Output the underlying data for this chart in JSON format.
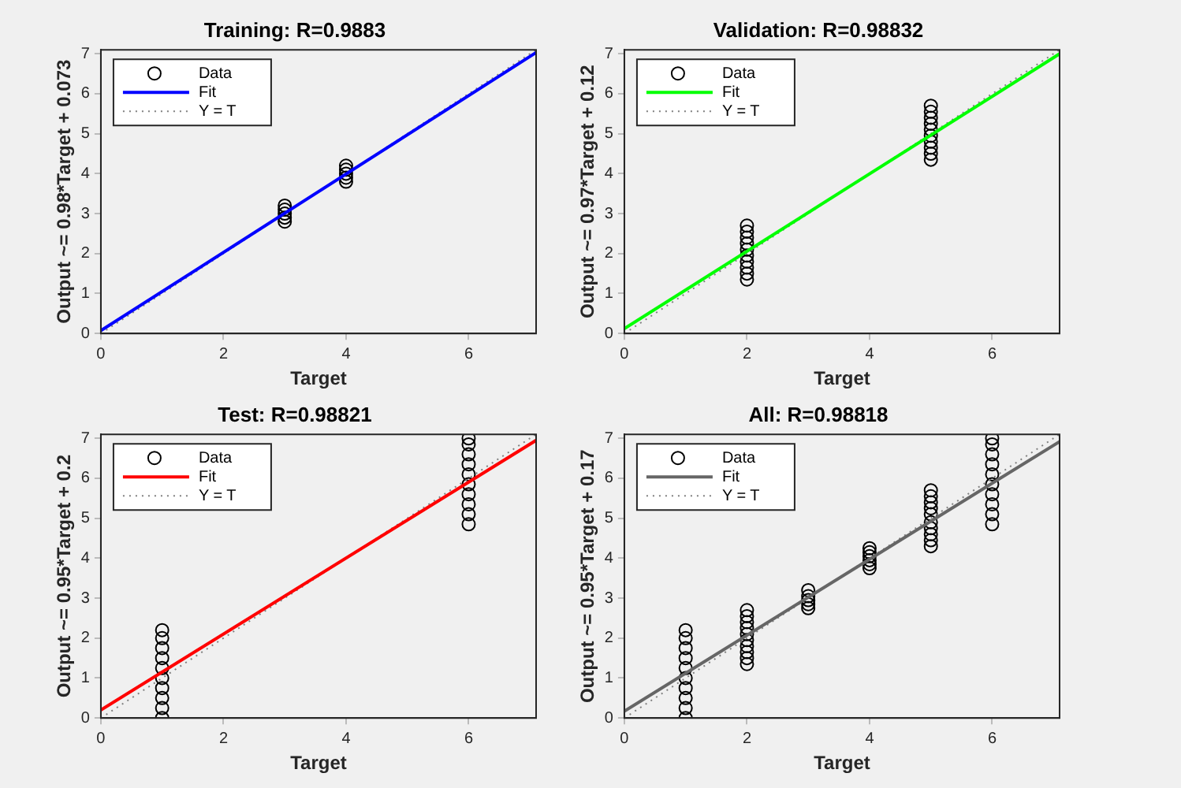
{
  "chart_data": [
    {
      "type": "scatter",
      "title": "Training: R=0.9883",
      "xlabel": "Target",
      "ylabel": "Output ~= 0.98*Target + 0.073",
      "xlim": [
        0,
        7.1
      ],
      "ylim": [
        0,
        7.1
      ],
      "xticks": [
        0,
        2,
        4,
        6
      ],
      "yticks": [
        0,
        1,
        2,
        3,
        4,
        5,
        6,
        7
      ],
      "grid": false,
      "legend": "top left",
      "series": [
        {
          "name": "Data",
          "type": "scatter",
          "color": "#000000",
          "marker": "circle",
          "x": [
            3,
            3,
            3,
            3,
            3,
            4,
            4,
            4,
            4,
            4
          ],
          "values": [
            2.8,
            2.9,
            3.0,
            3.1,
            3.2,
            3.8,
            3.9,
            4.0,
            4.1,
            4.2
          ]
        },
        {
          "name": "Fit",
          "type": "line",
          "color": "#0000ff",
          "line_style": "solid",
          "x": [
            0,
            7.1
          ],
          "values": [
            0.07,
            7.03
          ]
        },
        {
          "name": "Y = T",
          "type": "line",
          "color": "#808080",
          "line_style": "dotted",
          "x": [
            0,
            7.1
          ],
          "values": [
            0,
            7.1
          ]
        }
      ]
    },
    {
      "type": "scatter",
      "title": "Validation: R=0.98832",
      "xlabel": "Target",
      "ylabel": "Output ~= 0.97*Target + 0.12",
      "xlim": [
        0,
        7.1
      ],
      "ylim": [
        0,
        7.1
      ],
      "xticks": [
        0,
        2,
        4,
        6
      ],
      "yticks": [
        0,
        1,
        2,
        3,
        4,
        5,
        6,
        7
      ],
      "grid": false,
      "legend": "top left",
      "series": [
        {
          "name": "Data",
          "type": "scatter",
          "color": "#000000",
          "marker": "circle",
          "x": [
            2,
            2,
            2,
            2,
            2,
            2,
            2,
            2,
            2,
            2,
            5,
            5,
            5,
            5,
            5,
            5,
            5,
            5,
            5,
            5
          ],
          "values": [
            1.35,
            1.5,
            1.65,
            1.8,
            1.95,
            2.1,
            2.25,
            2.4,
            2.55,
            2.7,
            4.35,
            4.5,
            4.65,
            4.8,
            4.95,
            5.1,
            5.25,
            5.4,
            5.55,
            5.7
          ]
        },
        {
          "name": "Fit",
          "type": "line",
          "color": "#00ff00",
          "line_style": "solid",
          "x": [
            0,
            7.1
          ],
          "values": [
            0.12,
            7.0
          ]
        },
        {
          "name": "Y = T",
          "type": "line",
          "color": "#808080",
          "line_style": "dotted",
          "x": [
            0,
            7.1
          ],
          "values": [
            0,
            7.1
          ]
        }
      ]
    },
    {
      "type": "scatter",
      "title": "Test: R=0.98821",
      "xlabel": "Target",
      "ylabel": "Output ~= 0.95*Target + 0.2",
      "xlim": [
        0,
        7.1
      ],
      "ylim": [
        0,
        7.1
      ],
      "xticks": [
        0,
        2,
        4,
        6
      ],
      "yticks": [
        0,
        1,
        2,
        3,
        4,
        5,
        6,
        7
      ],
      "grid": false,
      "legend": "top left",
      "series": [
        {
          "name": "Data",
          "type": "scatter",
          "color": "#000000",
          "marker": "circle",
          "x": [
            1,
            1,
            1,
            1,
            1,
            1,
            1,
            1,
            1,
            1,
            6,
            6,
            6,
            6,
            6,
            6,
            6,
            6,
            6,
            6
          ],
          "values": [
            0,
            0.25,
            0.5,
            0.75,
            1.0,
            1.25,
            1.5,
            1.75,
            2.0,
            2.2,
            4.85,
            5.1,
            5.35,
            5.6,
            5.85,
            6.1,
            6.35,
            6.6,
            6.85,
            7.0
          ]
        },
        {
          "name": "Fit",
          "type": "line",
          "color": "#ff0000",
          "line_style": "solid",
          "x": [
            0,
            7.1
          ],
          "values": [
            0.2,
            6.95
          ]
        },
        {
          "name": "Y = T",
          "type": "line",
          "color": "#808080",
          "line_style": "dotted",
          "x": [
            0,
            7.1
          ],
          "values": [
            0,
            7.1
          ]
        }
      ]
    },
    {
      "type": "scatter",
      "title": "All: R=0.98818",
      "xlabel": "Target",
      "ylabel": "Output ~= 0.95*Target + 0.17",
      "xlim": [
        0,
        7.1
      ],
      "ylim": [
        0,
        7.1
      ],
      "xticks": [
        0,
        2,
        4,
        6
      ],
      "yticks": [
        0,
        1,
        2,
        3,
        4,
        5,
        6,
        7
      ],
      "grid": false,
      "legend": "top left",
      "series": [
        {
          "name": "Data",
          "type": "scatter",
          "color": "#000000",
          "marker": "circle",
          "x": [
            1,
            1,
            1,
            1,
            1,
            1,
            1,
            1,
            1,
            1,
            2,
            2,
            2,
            2,
            2,
            2,
            2,
            2,
            2,
            2,
            3,
            3,
            3,
            3,
            3,
            4,
            4,
            4,
            4,
            4,
            4,
            5,
            5,
            5,
            5,
            5,
            5,
            5,
            5,
            5,
            5,
            6,
            6,
            6,
            6,
            6,
            6,
            6,
            6,
            6,
            6
          ],
          "values": [
            0,
            0.25,
            0.5,
            0.75,
            1.0,
            1.25,
            1.5,
            1.75,
            2.0,
            2.2,
            1.35,
            1.5,
            1.65,
            1.8,
            1.95,
            2.1,
            2.25,
            2.4,
            2.55,
            2.7,
            2.75,
            2.85,
            2.95,
            3.05,
            3.2,
            3.75,
            3.85,
            3.95,
            4.05,
            4.15,
            4.25,
            4.3,
            4.45,
            4.6,
            4.75,
            4.9,
            5.1,
            5.25,
            5.4,
            5.55,
            5.7,
            4.85,
            5.1,
            5.35,
            5.6,
            5.85,
            6.1,
            6.35,
            6.6,
            6.85,
            7.0
          ]
        },
        {
          "name": "Fit",
          "type": "line",
          "color": "#666666",
          "line_style": "solid",
          "x": [
            0,
            7.1
          ],
          "values": [
            0.17,
            6.92
          ]
        },
        {
          "name": "Y = T",
          "type": "line",
          "color": "#808080",
          "line_style": "dotted",
          "x": [
            0,
            7.1
          ],
          "values": [
            0,
            7.1
          ]
        }
      ]
    }
  ]
}
